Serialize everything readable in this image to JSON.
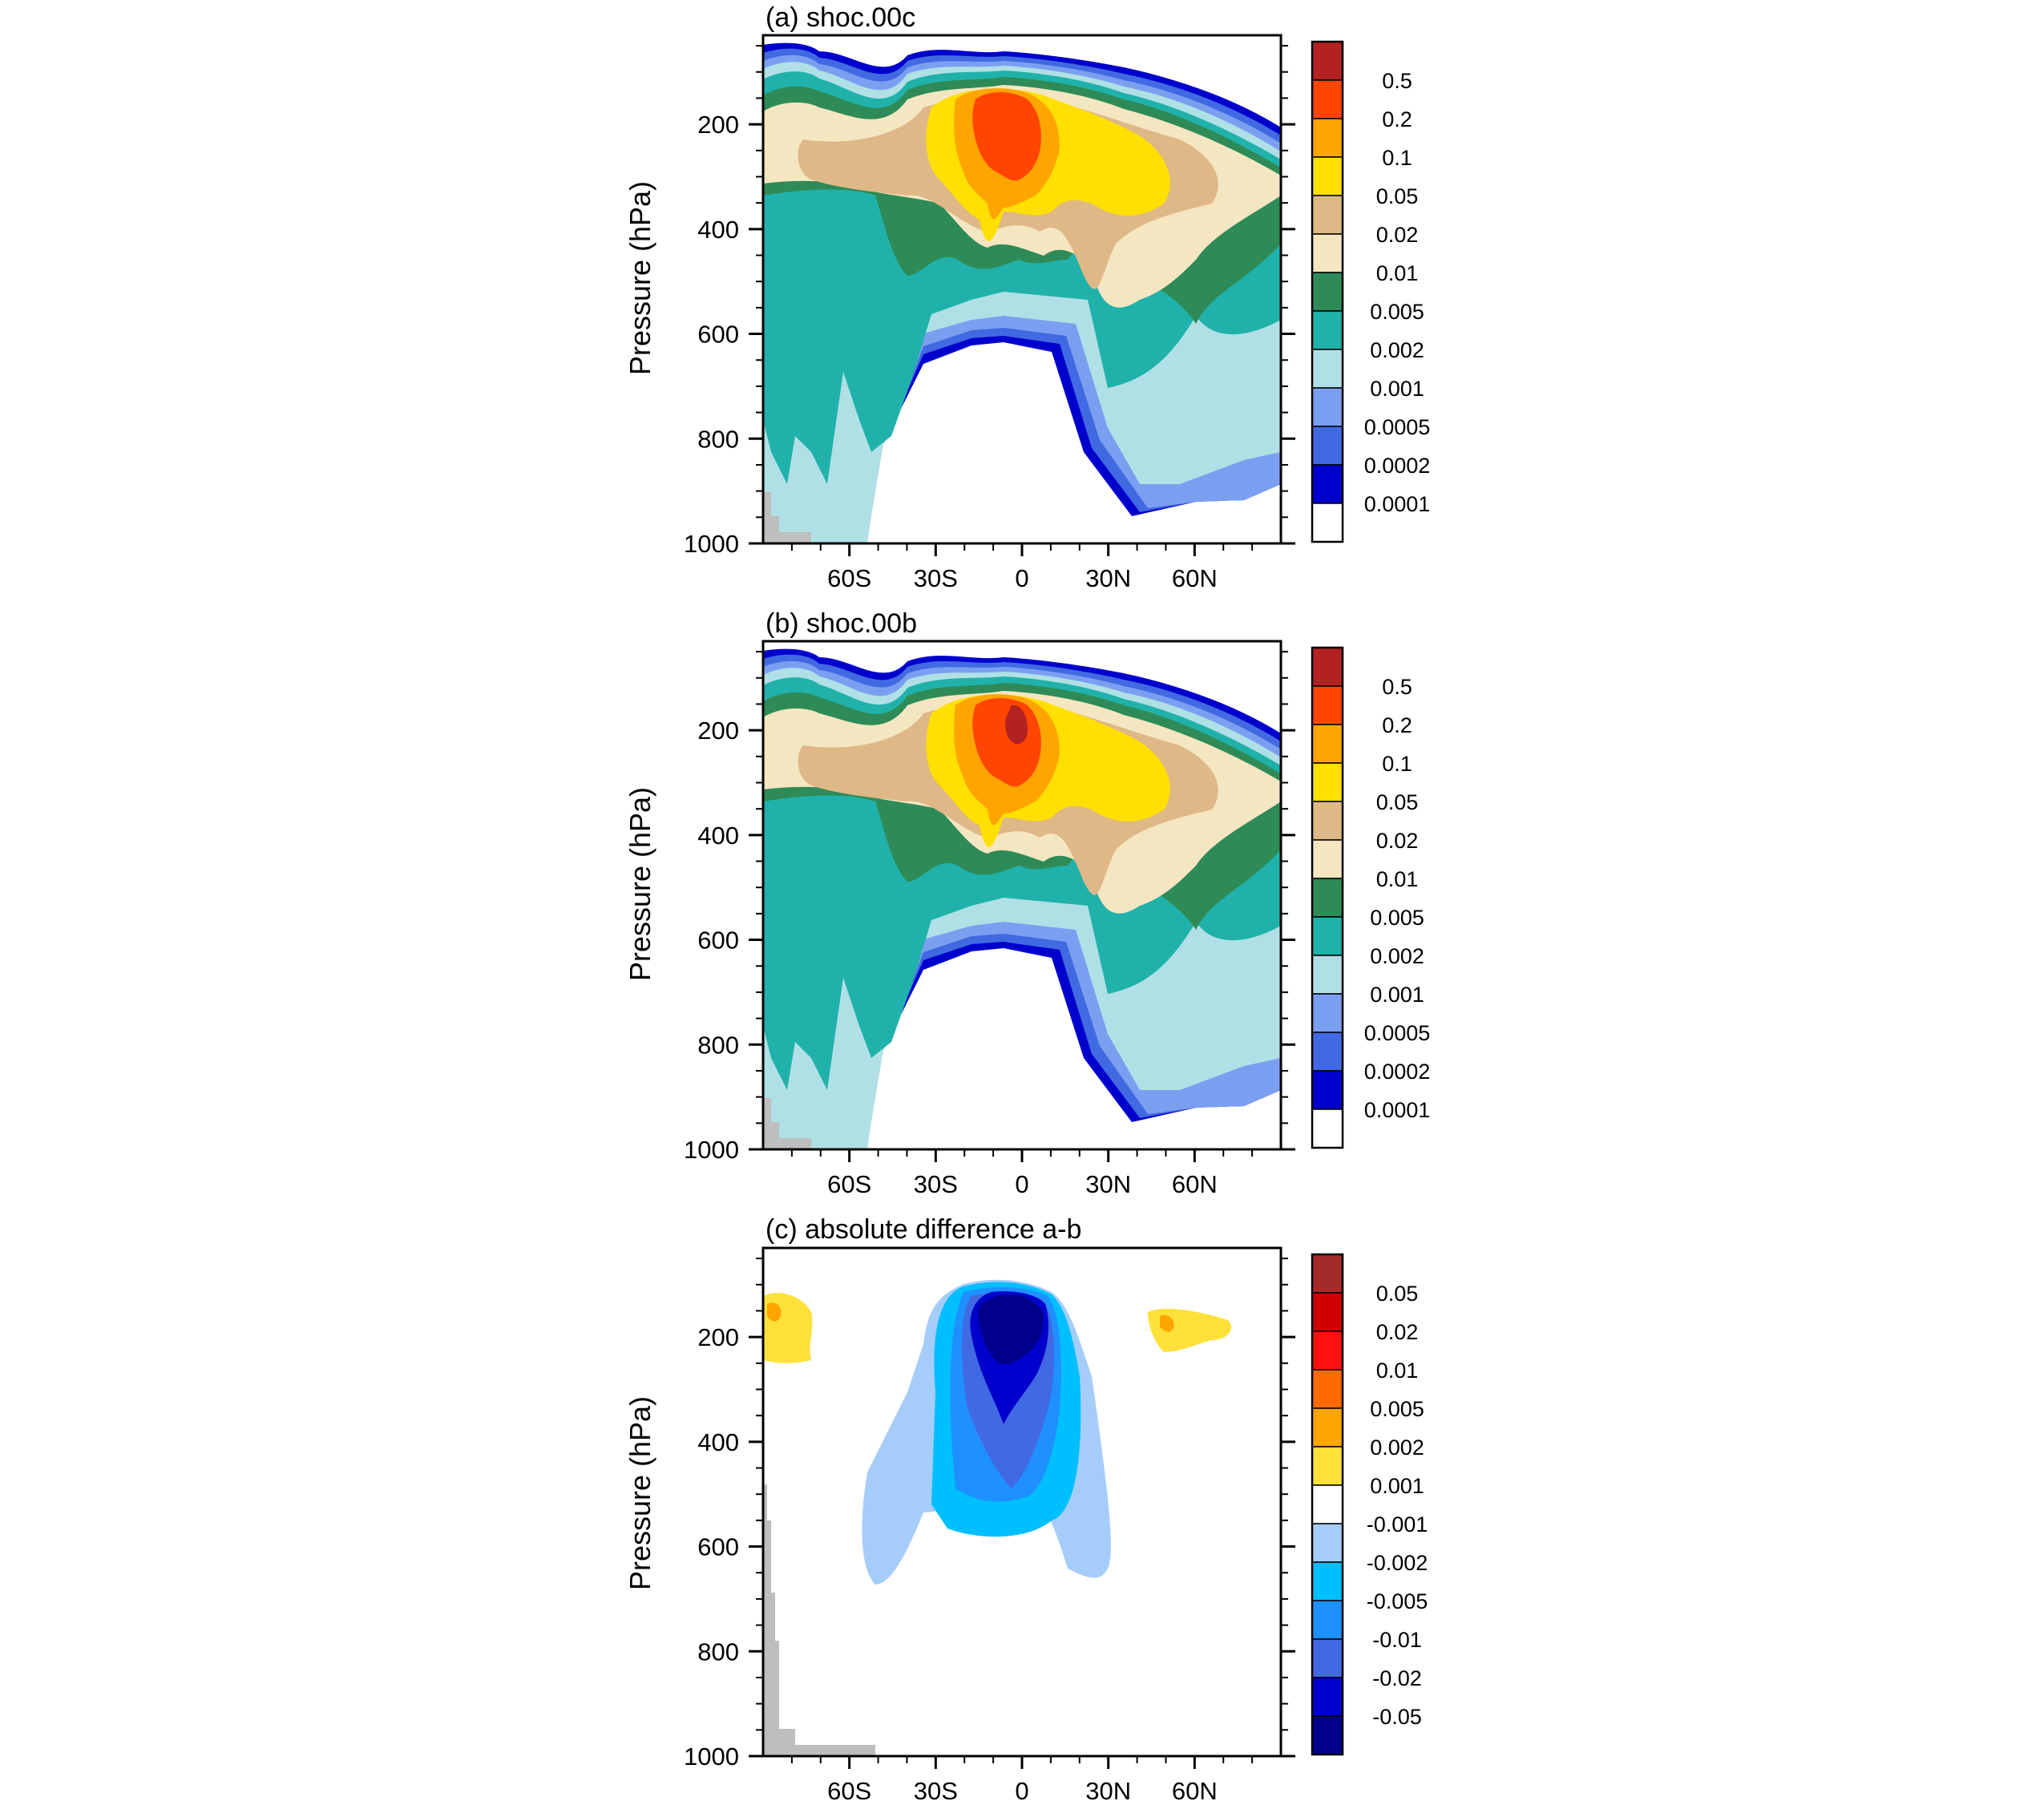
{
  "figure": {
    "description_free": true
  },
  "chart_data": [
    {
      "type": "contour",
      "title": "(a) shoc.00c",
      "ylabel": "Pressure (hPa)",
      "xlabel": "",
      "x_ticks": [
        "60S",
        "30S",
        "0",
        "30N",
        "60N"
      ],
      "x_tick_values": [
        -60,
        -30,
        0,
        30,
        60
      ],
      "xlim": [
        -90,
        90
      ],
      "y_ticks": [
        "200",
        "400",
        "600",
        "800",
        "1000"
      ],
      "y_tick_values": [
        200,
        400,
        600,
        800,
        1000
      ],
      "ylim": [
        30,
        1000
      ],
      "y_inverted": true,
      "colorbar_levels": [
        "0.5",
        "0.2",
        "0.1",
        "0.05",
        "0.02",
        "0.01",
        "0.005",
        "0.002",
        "0.001",
        "0.0005",
        "0.0002",
        "0.0001"
      ],
      "colorbar_colors": [
        "#b22222",
        "#ff4500",
        "#ffa500",
        "#ffe000",
        "#dfb887",
        "#f5e6c2",
        "#2e8b57",
        "#20b2aa",
        "#b0e0e6",
        "#7b9ff0",
        "#4169e1",
        "#0000cd",
        "#ffffff"
      ],
      "fields": {
        "peak_region": "tropical upper troposphere near 200 hPa",
        "peak_class": "0.2-0.5"
      }
    },
    {
      "type": "contour",
      "title": "(b) shoc.00b",
      "ylabel": "Pressure (hPa)",
      "xlabel": "",
      "x_ticks": [
        "60S",
        "30S",
        "0",
        "30N",
        "60N"
      ],
      "x_tick_values": [
        -60,
        -30,
        0,
        30,
        60
      ],
      "xlim": [
        -90,
        90
      ],
      "y_ticks": [
        "200",
        "400",
        "600",
        "800",
        "1000"
      ],
      "y_tick_values": [
        200,
        400,
        600,
        800,
        1000
      ],
      "ylim": [
        30,
        1000
      ],
      "y_inverted": true,
      "colorbar_levels": [
        "0.5",
        "0.2",
        "0.1",
        "0.05",
        "0.02",
        "0.01",
        "0.005",
        "0.002",
        "0.001",
        "0.0005",
        "0.0002",
        "0.0001"
      ],
      "colorbar_colors": [
        "#b22222",
        "#ff4500",
        "#ffa500",
        "#ffe000",
        "#dfb887",
        "#f5e6c2",
        "#2e8b57",
        "#20b2aa",
        "#b0e0e6",
        "#7b9ff0",
        "#4169e1",
        "#0000cd",
        "#ffffff"
      ],
      "fields": {
        "peak_region": "tropical upper troposphere near 200 hPa",
        "peak_class": ">0.5"
      }
    },
    {
      "type": "contour",
      "title": "(c) absolute difference a-b",
      "ylabel": "Pressure (hPa)",
      "xlabel": "",
      "x_ticks": [
        "60S",
        "30S",
        "0",
        "30N",
        "60N"
      ],
      "x_tick_values": [
        -60,
        -30,
        0,
        30,
        60
      ],
      "xlim": [
        -90,
        90
      ],
      "y_ticks": [
        "200",
        "400",
        "600",
        "800",
        "1000"
      ],
      "y_tick_values": [
        200,
        400,
        600,
        800,
        1000
      ],
      "ylim": [
        30,
        1000
      ],
      "y_inverted": true,
      "colorbar_levels": [
        "0.05",
        "0.02",
        "0.01",
        "0.005",
        "0.002",
        "0.001",
        "-0.001",
        "-0.002",
        "-0.005",
        "-0.01",
        "-0.02",
        "-0.05"
      ],
      "colorbar_colors": [
        "#a52a2a",
        "#d00000",
        "#ff1010",
        "#ff6a00",
        "#ffa500",
        "#ffe13a",
        "#ffffff",
        "#a6cdfa",
        "#00bfff",
        "#1e90ff",
        "#4169e1",
        "#0000cd",
        "#00008b"
      ],
      "fields": {
        "min_region": "tropics 100-400 hPa",
        "min_class": "<-0.05"
      }
    }
  ],
  "colors": {
    "topography": "#bebebe",
    "frame": "#000000",
    "background": "#ffffff"
  }
}
